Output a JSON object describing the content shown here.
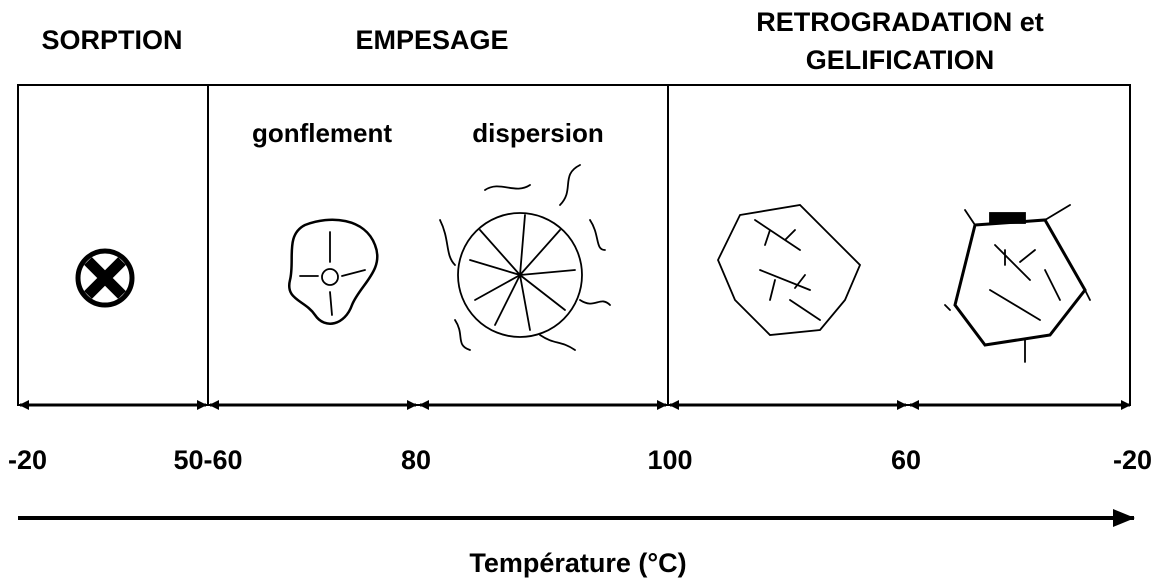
{
  "header": {
    "phases": [
      "SORPTION",
      "EMPESAGE",
      "RETROGRADATION et",
      "GELIFICATION"
    ]
  },
  "stages": [
    "gonflement",
    "dispersion"
  ],
  "temperatures": [
    "-20",
    "50-60",
    "80",
    "100",
    "60",
    "-20"
  ],
  "axis_label": "Température (°C)"
}
